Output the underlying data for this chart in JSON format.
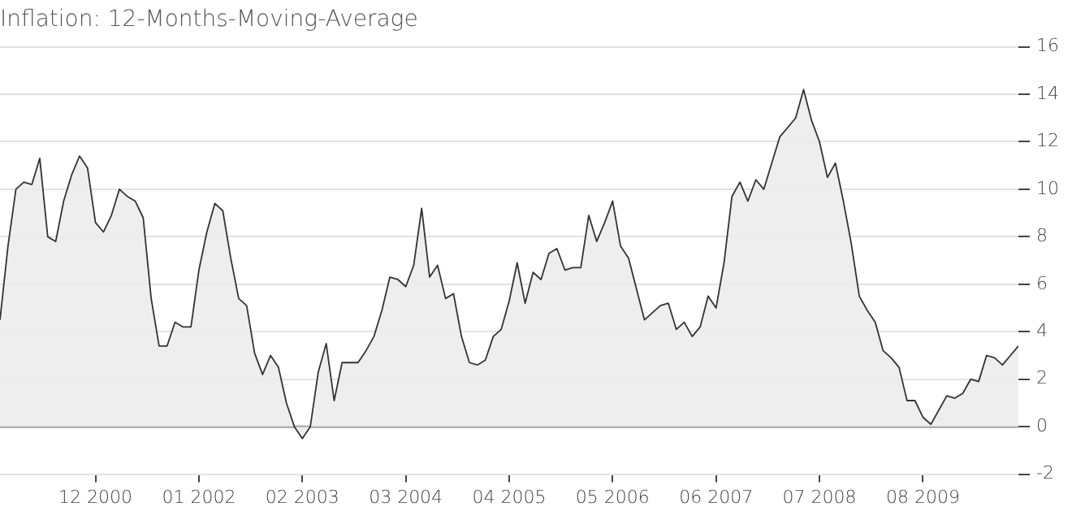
{
  "chart_data": {
    "type": "area",
    "title": "Inflation: 12-Months-Moving-Average",
    "x": [
      "1999-12",
      "2000-01",
      "2000-02",
      "2000-03",
      "2000-04",
      "2000-05",
      "2000-06",
      "2000-07",
      "2000-08",
      "2000-09",
      "2000-10",
      "2000-11",
      "2000-12",
      "2001-01",
      "2001-02",
      "2001-03",
      "2001-04",
      "2001-05",
      "2001-06",
      "2001-07",
      "2001-08",
      "2001-09",
      "2001-10",
      "2001-11",
      "2001-12",
      "2002-01",
      "2002-02",
      "2002-03",
      "2002-04",
      "2002-05",
      "2002-06",
      "2002-07",
      "2002-08",
      "2002-09",
      "2002-10",
      "2002-11",
      "2002-12",
      "2003-01",
      "2003-02",
      "2003-03",
      "2003-04",
      "2003-05",
      "2003-06",
      "2003-07",
      "2003-08",
      "2003-09",
      "2003-10",
      "2003-11",
      "2003-12",
      "2004-01",
      "2004-02",
      "2004-03",
      "2004-04",
      "2004-05",
      "2004-06",
      "2004-07",
      "2004-08",
      "2004-09",
      "2004-10",
      "2004-11",
      "2004-12",
      "2005-01",
      "2005-02",
      "2005-03",
      "2005-04",
      "2005-05",
      "2005-06",
      "2005-07",
      "2005-08",
      "2005-09",
      "2005-10",
      "2005-11",
      "2005-12",
      "2006-01",
      "2006-02",
      "2006-03",
      "2006-04",
      "2006-05",
      "2006-06",
      "2006-07",
      "2006-08",
      "2006-09",
      "2006-10",
      "2006-11",
      "2006-12",
      "2007-01",
      "2007-02",
      "2007-03",
      "2007-04",
      "2007-05",
      "2007-06",
      "2007-07",
      "2007-08",
      "2007-09",
      "2007-10",
      "2007-11",
      "2007-12",
      "2008-01",
      "2008-02",
      "2008-03",
      "2008-04",
      "2008-05",
      "2008-06",
      "2008-07",
      "2008-08",
      "2008-09",
      "2008-10",
      "2008-11",
      "2008-12",
      "2009-01",
      "2009-02",
      "2009-03",
      "2009-04",
      "2009-05",
      "2009-06",
      "2009-07",
      "2009-08",
      "2009-09",
      "2009-10",
      "2009-11",
      "2009-12",
      "2010-01",
      "2010-02",
      "2010-03",
      "2010-04",
      "2010-05",
      "2010-06",
      "2010-07",
      "2010-08"
    ],
    "series": [
      {
        "color": "#333333",
        "values": [
          4.5,
          7.6,
          10.0,
          10.3,
          10.2,
          11.3,
          8.0,
          7.8,
          9.5,
          10.6,
          11.4,
          10.9,
          8.6,
          8.2,
          8.9,
          10.0,
          9.7,
          9.5,
          8.8,
          5.4,
          3.4,
          3.4,
          4.4,
          4.2,
          4.2,
          6.6,
          8.2,
          9.4,
          9.1,
          7.1,
          5.4,
          5.1,
          3.1,
          2.2,
          3.0,
          2.5,
          1.0,
          0,
          -0.5,
          0,
          2.3,
          3.5,
          1.1,
          2.7,
          2.7,
          2.7,
          3.2,
          3.8,
          4.9,
          6.3,
          6.2,
          5.9,
          6.8,
          9.2,
          6.3,
          6.8,
          5.4,
          5.6,
          3.8,
          2.7,
          2.6,
          2.8,
          3.8,
          4.1,
          5.3,
          6.9,
          5.2,
          6.5,
          6.2,
          7.3,
          7.5,
          6.6,
          6.7,
          6.7,
          8.9,
          7.8,
          8.6,
          9.5,
          7.6,
          7.1,
          5.8,
          4.5,
          4.8,
          5.1,
          5.2,
          4.1,
          4.4,
          3.8,
          4.2,
          5.5,
          5.0,
          6.9,
          9.7,
          10.3,
          9.5,
          10.4,
          10.0,
          11.1,
          12.2,
          12.6,
          13.0,
          14.2,
          12.9,
          12.0,
          10.5,
          11.1,
          9.5,
          7.7,
          5.5,
          4.9,
          4.4,
          3.2,
          2.9,
          2.5,
          1.1,
          1.1,
          0.4,
          0.1,
          0.7,
          1.3,
          1.2,
          1.4,
          2.0,
          1.9,
          3.0,
          2.9,
          2.6,
          3.0,
          3.4
        ]
      }
    ],
    "xlim": [
      "1999-12",
      "2010-08"
    ],
    "xticks": [
      {
        "value": "2000-12",
        "label": "12 2000"
      },
      {
        "value": "2002-01",
        "label": "01 2002"
      },
      {
        "value": "2003-02",
        "label": "02 2003"
      },
      {
        "value": "2004-03",
        "label": "03 2004"
      },
      {
        "value": "2005-04",
        "label": "04 2005"
      },
      {
        "value": "2006-05",
        "label": "05 2006"
      },
      {
        "value": "2007-06",
        "label": "06 2007"
      },
      {
        "value": "2008-07",
        "label": "07 2008"
      },
      {
        "value": "2009-08",
        "label": "08 2009"
      }
    ],
    "ylim": [
      -2,
      16
    ],
    "yticks": [
      -2,
      0,
      2,
      4,
      6,
      8,
      10,
      12,
      14,
      16
    ],
    "grid": "y",
    "legend": false,
    "ref_lines": [
      {
        "axis": "y",
        "value": 0,
        "color": "#999999"
      }
    ]
  }
}
